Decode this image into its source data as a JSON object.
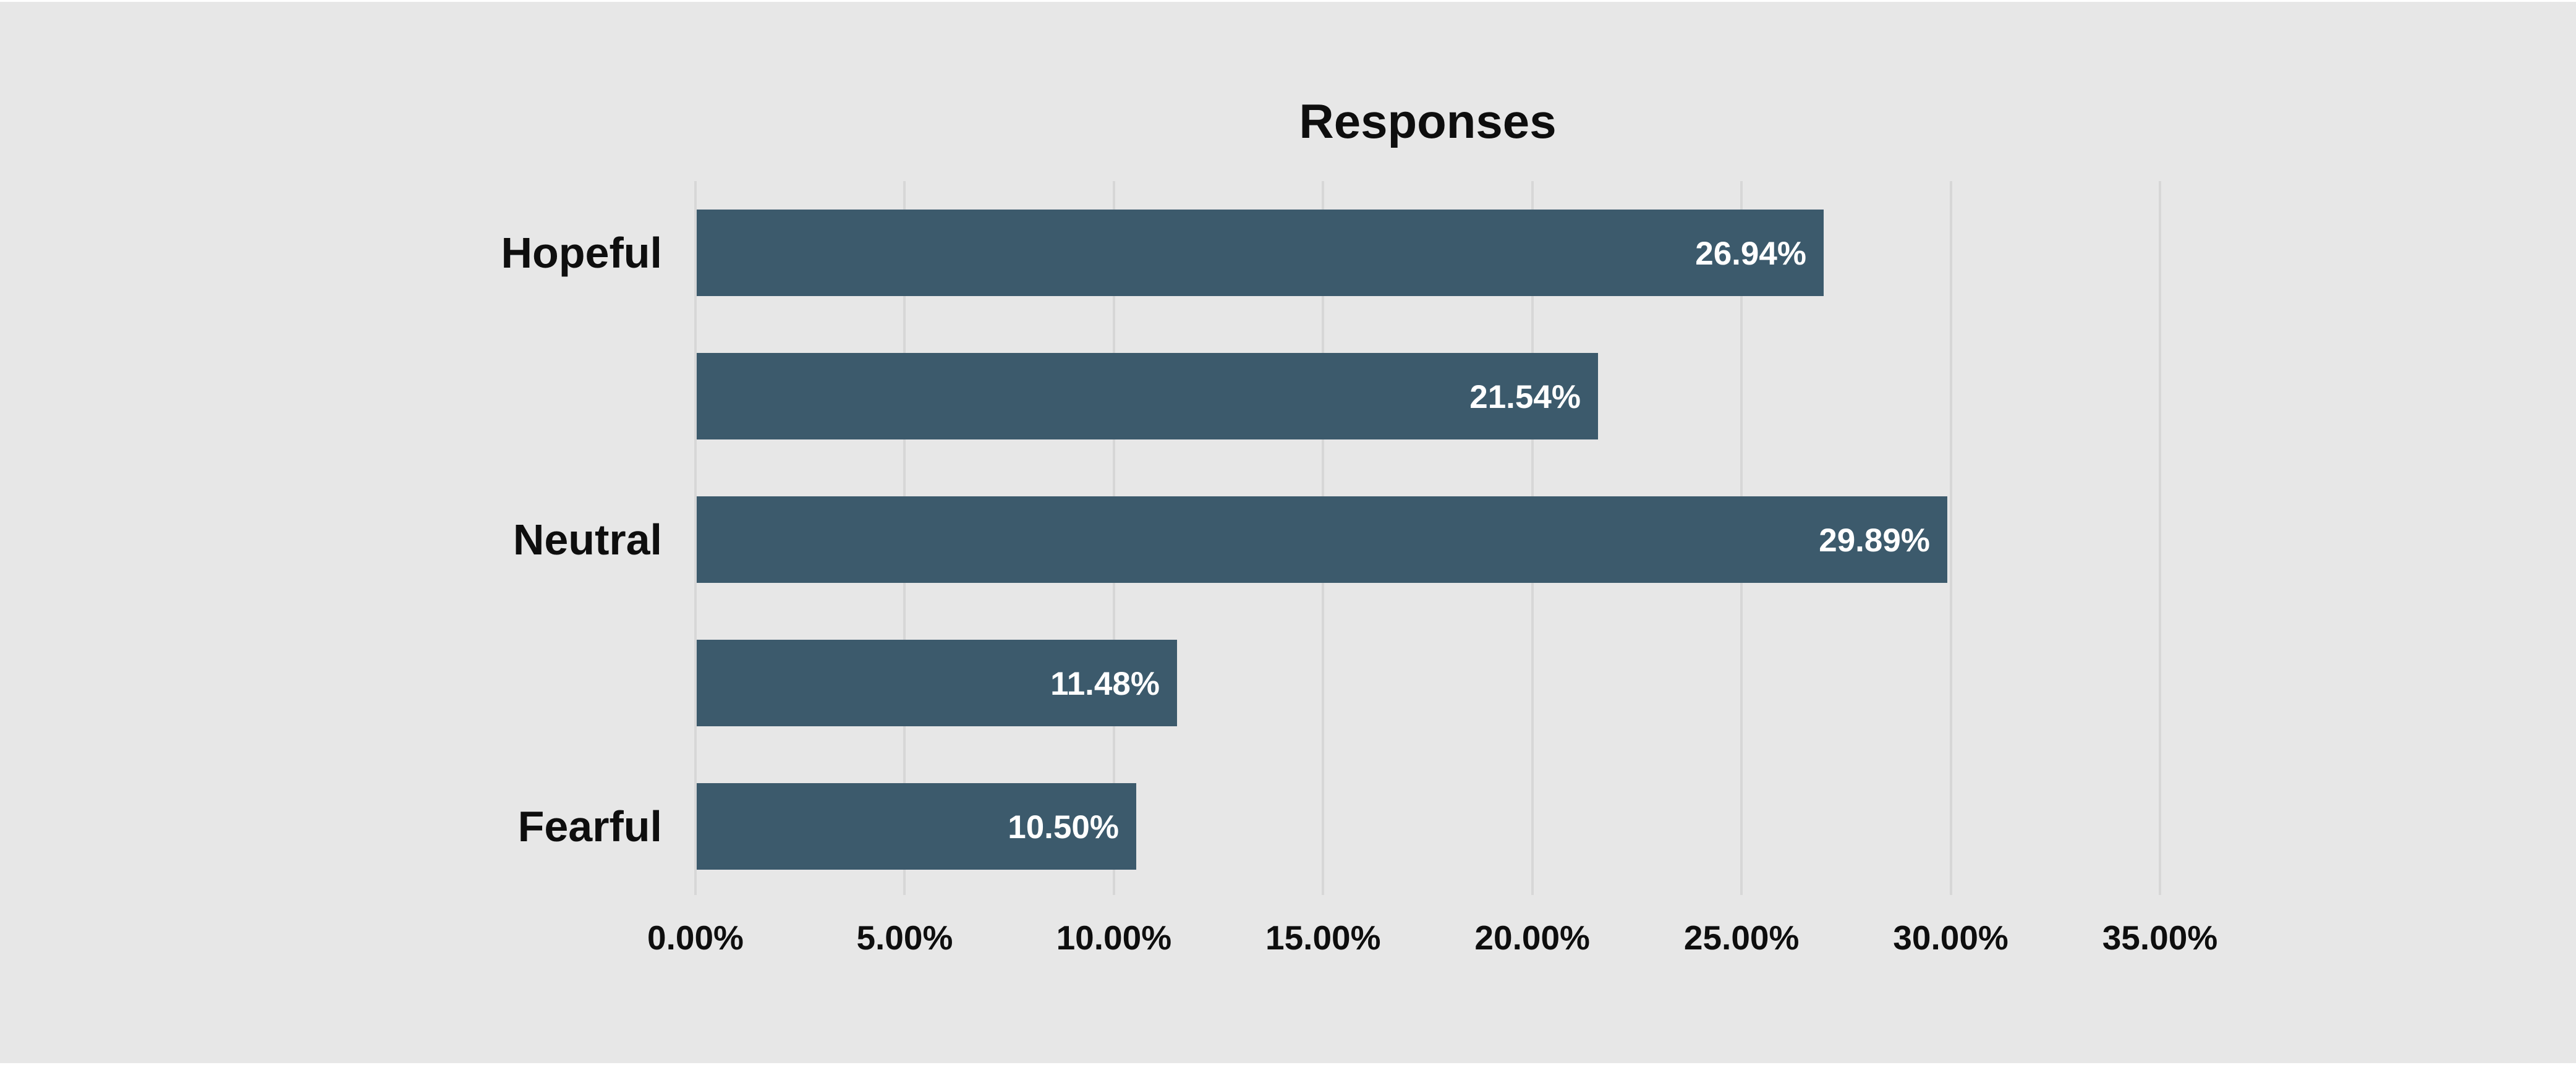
{
  "page": {
    "background_color": "#e7e7e7",
    "edge_strip_color": "#ffffff"
  },
  "chart_data": {
    "type": "bar",
    "orientation": "horizontal",
    "title": "Responses",
    "categories": [
      "Hopeful",
      "",
      "Neutral",
      "",
      "Fearful"
    ],
    "values": [
      26.94,
      21.54,
      29.89,
      11.48,
      10.5
    ],
    "data_labels": [
      "26.94%",
      "21.54%",
      "29.89%",
      "11.48%",
      "10.50%"
    ],
    "xlabel": "",
    "ylabel": "",
    "xlim": [
      0,
      35
    ],
    "x_ticks": [
      {
        "value": 0,
        "label": "0.00%"
      },
      {
        "value": 5,
        "label": "5.00%"
      },
      {
        "value": 10,
        "label": "10.00%"
      },
      {
        "value": 15,
        "label": "15.00%"
      },
      {
        "value": 20,
        "label": "20.00%"
      },
      {
        "value": 25,
        "label": "25.00%"
      },
      {
        "value": 30,
        "label": "30.00%"
      },
      {
        "value": 35,
        "label": "35.00%"
      }
    ],
    "grid": true,
    "legend": false,
    "bar_color": "#3c5a6c",
    "data_label_color": "#ffffff",
    "text_color": "#0e0e0e",
    "gridline_color": "#d7d7d7"
  }
}
